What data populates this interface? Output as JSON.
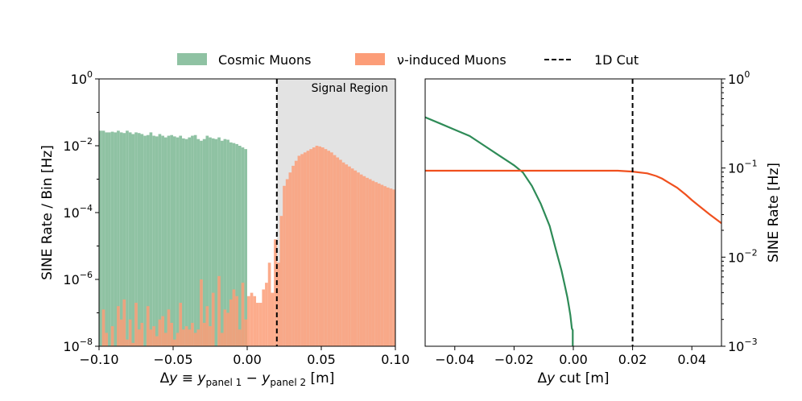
{
  "legend": {
    "items": [
      {
        "label": "Cosmic Muons",
        "style": "patch",
        "color": "#8fc2a3"
      },
      {
        "label": "ν-induced Muons",
        "style": "patch",
        "color": "#fc9d78"
      },
      {
        "label": "1D Cut",
        "style": "dashed-line",
        "color": "#000000"
      }
    ],
    "placement": "top-center"
  },
  "chart_data": [
    {
      "type": "bar",
      "title": "",
      "xlabel_parts": {
        "delta": "Δ",
        "y": "y",
        "eq": " ≡ ",
        "panel1": "panel 1",
        "minus": " − ",
        "panel2": "panel 2",
        "unit": " [m]"
      },
      "ylabel": "SINE Rate / Bin [Hz]",
      "xlim": [
        -0.1,
        0.1
      ],
      "ylim_log10": [
        -8,
        0
      ],
      "xticks": [
        -0.1,
        -0.05,
        0.0,
        0.05,
        0.1
      ],
      "xtick_labels": [
        "−0.10",
        "−0.05",
        "0.00",
        "0.05",
        "0.10"
      ],
      "yticks_exp": [
        "0",
        "−2",
        "−4",
        "−6",
        "−8"
      ],
      "annotation": "Signal Region",
      "cut_x": 0.02,
      "signal_region": [
        0.02,
        0.1
      ],
      "bin_width": 0.002,
      "bin_start": -0.1,
      "series": [
        {
          "name": "Cosmic Muons",
          "color": "#8fc2a3",
          "log10_values": [
            -1.55,
            -1.55,
            -1.6,
            -1.6,
            -1.58,
            -1.6,
            -1.55,
            -1.6,
            -1.62,
            -1.55,
            -1.6,
            -1.65,
            -1.6,
            -1.62,
            -1.65,
            -1.7,
            -1.68,
            -1.6,
            -1.7,
            -1.72,
            -1.65,
            -1.7,
            -1.75,
            -1.7,
            -1.68,
            -1.72,
            -1.75,
            -1.7,
            -1.78,
            -1.8,
            -1.75,
            -1.7,
            -1.68,
            -1.8,
            -1.85,
            -1.8,
            -1.7,
            -1.75,
            -1.78,
            -1.8,
            -1.75,
            -1.85,
            -1.8,
            -1.82,
            -1.9,
            -1.92,
            -1.95,
            -2.0,
            -2.05,
            -2.1
          ]
        },
        {
          "name": "ν-induced Muons",
          "color": "#fc9d78",
          "log10_values": [
            -8,
            -6.9,
            -7.6,
            -8,
            -7.4,
            -8,
            -6.8,
            -7.2,
            -6.6,
            -7.8,
            -7.2,
            -7.9,
            -6.7,
            -7.5,
            -7.3,
            -8,
            -6.8,
            -7.5,
            -7.4,
            -7.7,
            -7.2,
            -7.1,
            -7.6,
            -6.9,
            -7.3,
            -7.8,
            -7.6,
            -6.7,
            -7.5,
            -7.4,
            -7.5,
            -7.3,
            -7.6,
            -7.5,
            -6.0,
            -7.3,
            -6.8,
            -7.4,
            -6.4,
            -8,
            -5.9,
            -7.6,
            -6.9,
            -7.0,
            -6.6,
            -6.3,
            -6.5,
            -7.5,
            -6.1,
            -7.2,
            -6.5,
            -6.4,
            -6.5,
            -6.7,
            -6.7,
            -6.3,
            -6.1,
            -5.5,
            -6.4,
            -4.8,
            -5.5,
            -4.1,
            -3.2,
            -3.0,
            -2.8,
            -2.6,
            -2.45,
            -2.3,
            -2.25,
            -2.2,
            -2.15,
            -2.1,
            -2.05,
            -2.0,
            -2.02,
            -2.05,
            -2.1,
            -2.15,
            -2.2,
            -2.28,
            -2.35,
            -2.42,
            -2.5,
            -2.56,
            -2.62,
            -2.68,
            -2.74,
            -2.8,
            -2.86,
            -2.91,
            -2.96,
            -3.0,
            -3.05,
            -3.09,
            -3.13,
            -3.17,
            -3.21,
            -3.25,
            -3.28,
            -3.31
          ]
        }
      ]
    },
    {
      "type": "line",
      "title": "",
      "xlabel_parts": {
        "delta": "Δ",
        "y": "y",
        "rest": " cut [m]"
      },
      "ylabel": "SINE Rate [Hz]",
      "xlim": [
        -0.05,
        0.05
      ],
      "ylim_log10": [
        -3,
        0
      ],
      "xticks": [
        -0.04,
        -0.02,
        0.0,
        0.02,
        0.04
      ],
      "xtick_labels": [
        "−0.04",
        "−0.02",
        "0.00",
        "0.02",
        "0.04"
      ],
      "yticks_exp": [
        "0",
        "−1",
        "−2",
        "−3"
      ],
      "cut_x": 0.02,
      "series": [
        {
          "name": "Cosmic Muons",
          "color": "#2e8b57",
          "x": [
            -0.05,
            -0.045,
            -0.04,
            -0.035,
            -0.03,
            -0.025,
            -0.02,
            -0.017,
            -0.014,
            -0.011,
            -0.008,
            -0.006,
            -0.004,
            -0.003,
            -0.002,
            -0.0015,
            -0.001,
            -0.0005,
            -0.0002
          ],
          "log10_y": [
            -0.43,
            -0.5,
            -0.57,
            -0.64,
            -0.75,
            -0.86,
            -0.97,
            -1.05,
            -1.2,
            -1.4,
            -1.65,
            -1.9,
            -2.15,
            -2.3,
            -2.45,
            -2.55,
            -2.65,
            -2.8,
            -2.82
          ]
        },
        {
          "name": "ν-induced Muons",
          "color": "#f0501e",
          "x": [
            -0.05,
            -0.04,
            -0.03,
            -0.02,
            -0.01,
            0.0,
            0.01,
            0.015,
            0.02,
            0.025,
            0.028,
            0.03,
            0.032,
            0.035,
            0.038,
            0.04,
            0.043,
            0.046,
            0.05
          ],
          "log10_y": [
            -1.03,
            -1.03,
            -1.03,
            -1.03,
            -1.03,
            -1.03,
            -1.03,
            -1.03,
            -1.04,
            -1.06,
            -1.09,
            -1.12,
            -1.16,
            -1.22,
            -1.3,
            -1.36,
            -1.44,
            -1.52,
            -1.62
          ]
        }
      ]
    }
  ]
}
